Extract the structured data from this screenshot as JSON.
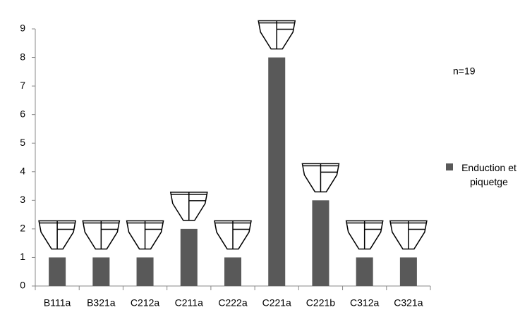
{
  "chart_data": {
    "type": "bar",
    "categories": [
      "B111a",
      "B321a",
      "C212a",
      "C211a",
      "C222a",
      "C221a",
      "C221b",
      "C312a",
      "C321a"
    ],
    "series": [
      {
        "name": "Enduction et piquetge",
        "color": "#595959",
        "values": [
          1,
          1,
          1,
          2,
          1,
          8,
          3,
          1,
          1
        ]
      }
    ],
    "ylim": [
      0,
      9
    ],
    "yticks": [
      0,
      1,
      2,
      3,
      4,
      5,
      6,
      7,
      8,
      9
    ],
    "annotation": "n=19"
  }
}
